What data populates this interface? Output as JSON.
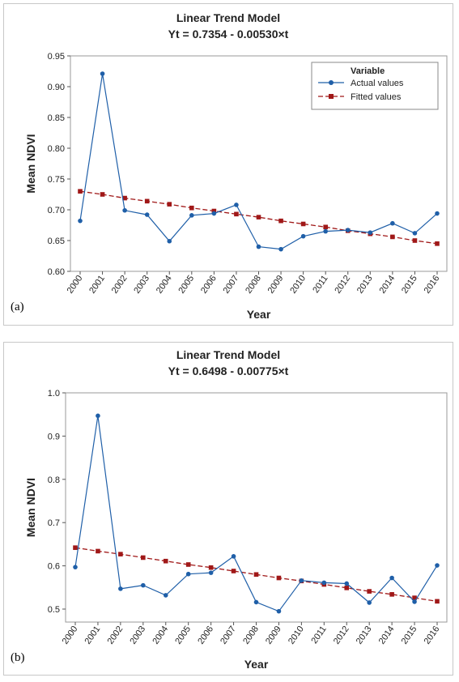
{
  "chart_data": [
    {
      "type": "line",
      "panel_label": "(a)",
      "title": "Linear Trend Model",
      "subtitle": "Yt = 0.7354 - 0.00530×t",
      "xlabel": "Year",
      "ylabel": "Mean NDVI",
      "categories": [
        "2000",
        "2001",
        "2002",
        "2003",
        "2004",
        "2005",
        "2006",
        "2007",
        "2008",
        "2009",
        "2010",
        "2011",
        "2012",
        "2013",
        "2014",
        "2015",
        "2016"
      ],
      "yticks": [
        "0.60",
        "0.65",
        "0.70",
        "0.75",
        "0.80",
        "0.85",
        "0.90",
        "0.95"
      ],
      "ylim": [
        0.6,
        0.95
      ],
      "legend": {
        "title": "Variable",
        "placement": "top-right"
      },
      "series": [
        {
          "name": "Actual values",
          "color": "#1f5fa8",
          "style": "solid",
          "marker": "circle",
          "values": [
            0.682,
            0.921,
            0.699,
            0.692,
            0.649,
            0.691,
            0.694,
            0.708,
            0.64,
            0.636,
            0.657,
            0.665,
            0.667,
            0.663,
            0.678,
            0.662,
            0.694
          ]
        },
        {
          "name": "Fitted values",
          "color": "#a01818",
          "style": "dashed",
          "marker": "square",
          "values": [
            0.73,
            0.725,
            0.719,
            0.714,
            0.709,
            0.703,
            0.698,
            0.693,
            0.688,
            0.682,
            0.677,
            0.672,
            0.666,
            0.661,
            0.656,
            0.65,
            0.645
          ]
        }
      ]
    },
    {
      "type": "line",
      "panel_label": "(b)",
      "title": "Linear Trend Model",
      "subtitle": "Yt = 0.6498 - 0.00775×t",
      "xlabel": "Year",
      "ylabel": "Mean NDVI",
      "categories": [
        "2000",
        "2001",
        "2002",
        "2003",
        "2004",
        "2005",
        "2006",
        "2007",
        "2008",
        "2009",
        "2010",
        "2011",
        "2012",
        "2013",
        "2014",
        "2015",
        "2016"
      ],
      "yticks": [
        "0.5",
        "0.6",
        "0.7",
        "0.8",
        "0.9",
        "1.0"
      ],
      "ylim": [
        0.47,
        1.0
      ],
      "series": [
        {
          "name": "Actual values",
          "color": "#1f5fa8",
          "style": "solid",
          "marker": "circle",
          "values": [
            0.597,
            0.947,
            0.547,
            0.555,
            0.532,
            0.581,
            0.584,
            0.622,
            0.516,
            0.495,
            0.566,
            0.561,
            0.559,
            0.515,
            0.572,
            0.517,
            0.601
          ]
        },
        {
          "name": "Fitted values",
          "color": "#a01818",
          "style": "dashed",
          "marker": "square",
          "values": [
            0.642,
            0.634,
            0.627,
            0.619,
            0.611,
            0.603,
            0.596,
            0.588,
            0.58,
            0.572,
            0.565,
            0.557,
            0.549,
            0.541,
            0.534,
            0.526,
            0.518
          ]
        }
      ]
    }
  ]
}
